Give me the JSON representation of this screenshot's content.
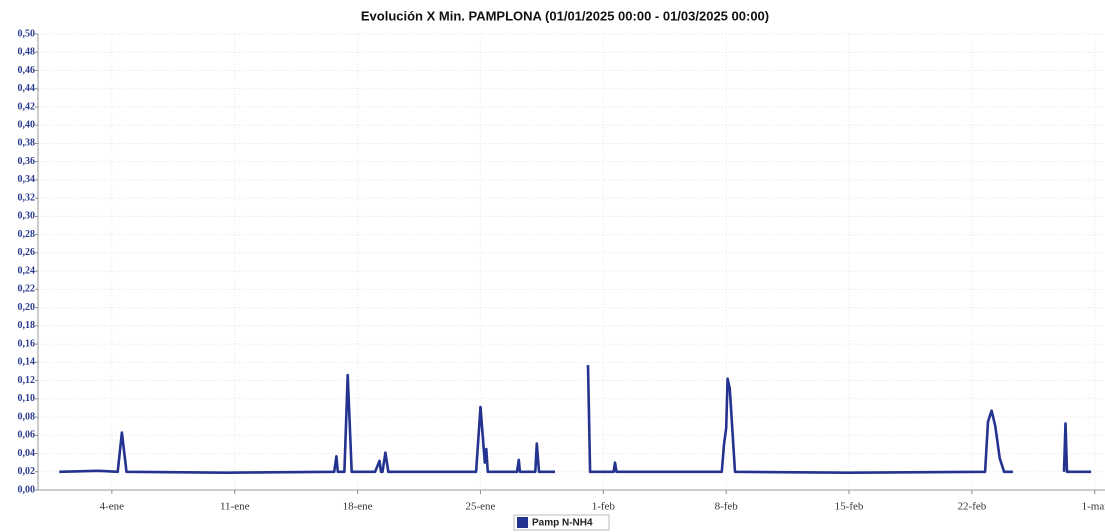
{
  "chart_data": {
    "type": "line",
    "title": "Evolución X Min. PAMPLONA  (01/01/2025 00:00 - 01/03/2025 00:00)",
    "x": [
      "2025-01-01T00:00",
      "2025-01-03T06:00",
      "2025-01-04T08:00",
      "2025-01-04T13:40",
      "2025-01-04T20:00",
      "2025-01-10T12:00",
      "2025-01-16T16:00",
      "2025-01-16T19:00",
      "2025-01-16T21:00",
      "2025-01-17T06:00",
      "2025-01-17T10:30",
      "2025-01-17T16:00",
      "2025-01-19T00:00",
      "2025-01-19T06:00",
      "2025-01-19T08:00",
      "2025-01-19T10:00",
      "2025-01-19T14:00",
      "2025-01-19T18:00",
      "2025-01-22T00:00",
      "2025-01-24T18:00",
      "2025-01-25T00:00",
      "2025-01-25T06:00",
      "2025-01-25T08:00",
      "2025-01-25T10:00",
      "2025-01-27T02:00",
      "2025-01-27T04:30",
      "2025-01-27T06:00",
      "2025-01-28T03:00",
      "2025-01-28T05:00",
      "2025-01-28T08:00",
      "2025-01-29T06:00",
      "2025-01-30T00:00",
      "2025-01-31T03:00",
      "2025-01-31T06:00",
      "2025-02-01T14:00",
      "2025-02-01T16:00",
      "2025-02-01T18:00",
      "2025-02-07T18:00",
      "2025-02-07T21:00",
      "2025-02-08T00:00",
      "2025-02-08T02:00",
      "2025-02-08T05:00",
      "2025-02-08T12:00",
      "2025-02-15T00:00",
      "2025-02-22T18:00",
      "2025-02-22T22:00",
      "2025-02-23T03:00",
      "2025-02-23T08:00",
      "2025-02-23T14:00",
      "2025-02-23T20:00",
      "2025-02-24T08:00",
      "2025-02-26T00:00",
      "2025-02-27T06:00",
      "2025-02-27T08:00",
      "2025-02-27T10:00",
      "2025-02-28T19:00"
    ],
    "series": [
      {
        "name": "Pamp N-NH4",
        "color": "#24338f",
        "values": [
          0.02,
          0.021,
          0.02,
          0.063,
          0.02,
          0.019,
          0.02,
          0.037,
          0.02,
          0.02,
          0.126,
          0.02,
          0.02,
          0.032,
          0.02,
          0.02,
          0.041,
          0.02,
          0.02,
          0.02,
          0.091,
          0.03,
          0.045,
          0.02,
          0.02,
          0.033,
          0.02,
          0.02,
          0.051,
          0.02,
          0.02,
          null,
          0.137,
          0.02,
          0.02,
          0.03,
          0.02,
          0.02,
          0.05,
          0.068,
          0.122,
          0.111,
          0.02,
          0.019,
          0.02,
          0.075,
          0.087,
          0.07,
          0.035,
          0.02,
          0.02,
          null,
          0.02,
          0.073,
          0.02,
          0.02
        ]
      }
    ],
    "xlim": [
      "2024-12-30T19:00",
      "2025-03-01T14:00"
    ],
    "xticks": [
      {
        "value": "2025-01-04",
        "label": "4-ene"
      },
      {
        "value": "2025-01-11",
        "label": "11-ene"
      },
      {
        "value": "2025-01-18",
        "label": "18-ene"
      },
      {
        "value": "2025-01-25",
        "label": "25-ene"
      },
      {
        "value": "2025-02-01",
        "label": "1-feb"
      },
      {
        "value": "2025-02-08",
        "label": "8-feb"
      },
      {
        "value": "2025-02-15",
        "label": "15-feb"
      },
      {
        "value": "2025-02-22",
        "label": "22-feb"
      },
      {
        "value": "2025-03-01",
        "label": "1-mar"
      }
    ],
    "ylim": [
      0,
      0.5
    ],
    "yticks": [
      {
        "value": 0,
        "label": "0,00"
      },
      {
        "value": 0.02,
        "label": "0,02"
      },
      {
        "value": 0.04,
        "label": "0,04"
      },
      {
        "value": 0.06,
        "label": "0,06"
      },
      {
        "value": 0.08,
        "label": "0,08"
      },
      {
        "value": 0.1,
        "label": "0,10"
      },
      {
        "value": 0.12,
        "label": "0,12"
      },
      {
        "value": 0.14,
        "label": "0,14"
      },
      {
        "value": 0.16,
        "label": "0,16"
      },
      {
        "value": 0.18,
        "label": "0,18"
      },
      {
        "value": 0.2,
        "label": "0,20"
      },
      {
        "value": 0.22,
        "label": "0,22"
      },
      {
        "value": 0.24,
        "label": "0,24"
      },
      {
        "value": 0.26,
        "label": "0,26"
      },
      {
        "value": 0.28,
        "label": "0,28"
      },
      {
        "value": 0.3,
        "label": "0,30"
      },
      {
        "value": 0.32,
        "label": "0,32"
      },
      {
        "value": 0.34,
        "label": "0,34"
      },
      {
        "value": 0.36,
        "label": "0,36"
      },
      {
        "value": 0.38,
        "label": "0,38"
      },
      {
        "value": 0.4,
        "label": "0,40"
      },
      {
        "value": 0.42,
        "label": "0,42"
      },
      {
        "value": 0.44,
        "label": "0,44"
      },
      {
        "value": 0.46,
        "label": "0,46"
      },
      {
        "value": 0.48,
        "label": "0,48"
      },
      {
        "value": 0.5,
        "label": "0,50"
      }
    ],
    "grid": true,
    "legend": "bottom"
  }
}
